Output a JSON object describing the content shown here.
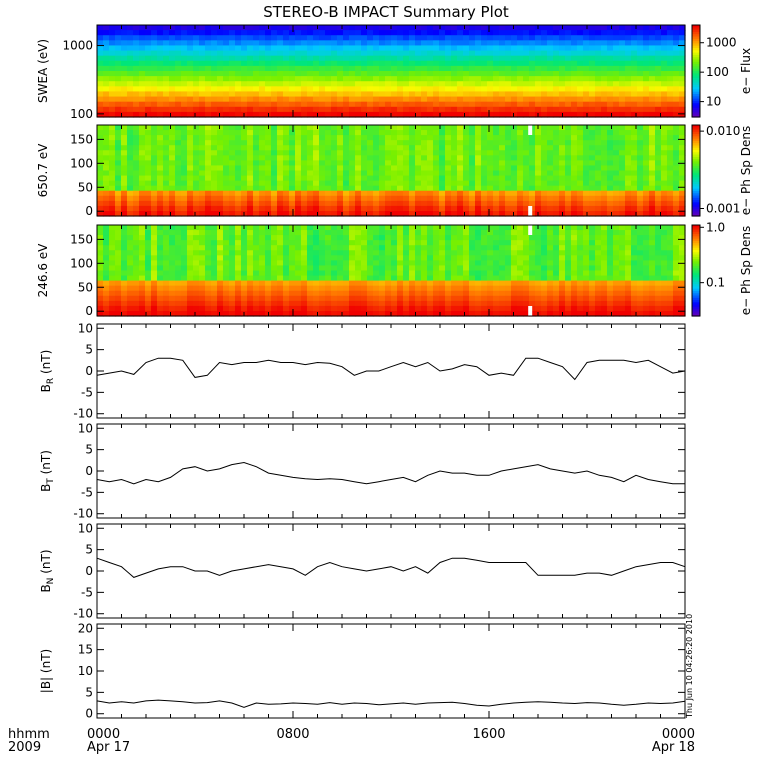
{
  "title": "STEREO-B IMPACT Summary Plot",
  "footer": {
    "hhmm_label": "hhmm",
    "year_label": "2009",
    "x_ticks": [
      {
        "hours": 0,
        "time": "0000",
        "date": "Apr 17"
      },
      {
        "hours": 8,
        "time": "0800",
        "date": ""
      },
      {
        "hours": 16,
        "time": "1600",
        "date": ""
      },
      {
        "hours": 24,
        "time": "0000",
        "date": "Apr 18"
      }
    ]
  },
  "timestamp": "Thu Jun 10 04:26:20 2010",
  "colors": {
    "line": "#000000",
    "frame": "#000000"
  },
  "chart_data": [
    {
      "type": "heatmap",
      "panel": "swea",
      "ylabel": "SWEA (eV)",
      "ylog": true,
      "ylim": [
        90,
        2000
      ],
      "yticks": [
        {
          "value": 1000,
          "label": "1000"
        },
        {
          "value": 100,
          "label": "100"
        }
      ],
      "colorbar": {
        "label": "e− Flux",
        "log": true,
        "range": [
          3,
          4000
        ],
        "ticks": [
          {
            "value": 1000,
            "label": "1000"
          },
          {
            "value": 100,
            "label": "100"
          },
          {
            "value": 10,
            "label": "10"
          }
        ]
      }
    },
    {
      "type": "heatmap",
      "panel": "pad650",
      "ylabel": "650.7 eV",
      "ylim": [
        -10,
        180
      ],
      "yticks": [
        {
          "value": 150,
          "label": "150"
        },
        {
          "value": 100,
          "label": "100"
        },
        {
          "value": 50,
          "label": "50"
        },
        {
          "value": 0,
          "label": "0"
        }
      ],
      "colorbar": {
        "label": "e− Ph Sp Dens",
        "log": true,
        "range": [
          0.0008,
          0.012
        ],
        "ticks": [
          {
            "value": 0.01,
            "label": "0.010"
          },
          {
            "value": 0.001,
            "label": "0.001"
          }
        ]
      }
    },
    {
      "type": "heatmap",
      "panel": "pad246",
      "ylabel": "246.6 eV",
      "ylim": [
        -10,
        180
      ],
      "yticks": [
        {
          "value": 150,
          "label": "150"
        },
        {
          "value": 100,
          "label": "100"
        },
        {
          "value": 50,
          "label": "50"
        },
        {
          "value": 0,
          "label": "0"
        }
      ],
      "colorbar": {
        "label": "e− Ph Sp Dens",
        "log": true,
        "range": [
          0.025,
          1.1
        ],
        "ticks": [
          {
            "value": 1.0,
            "label": "1.0"
          },
          {
            "value": 0.1,
            "label": "0.1"
          }
        ]
      }
    },
    {
      "type": "line",
      "panel": "br",
      "ylabel_main": "B",
      "ylabel_sub": "R",
      "ylabel_unit": "(nT)",
      "ylim": [
        -11,
        11
      ],
      "yticks": [
        {
          "value": 10,
          "label": "10"
        },
        {
          "value": 5,
          "label": "5"
        },
        {
          "value": 0,
          "label": "0"
        },
        {
          "value": -5,
          "label": "-5"
        },
        {
          "value": -10,
          "label": "-10"
        }
      ],
      "x": [
        0,
        0.5,
        1,
        1.5,
        2,
        2.5,
        3,
        3.5,
        4,
        4.5,
        5,
        5.5,
        6,
        6.5,
        7,
        7.5,
        8,
        8.5,
        9,
        9.5,
        10,
        10.5,
        11,
        11.5,
        12,
        12.5,
        13,
        13.5,
        14,
        14.5,
        15,
        15.5,
        16,
        16.5,
        17,
        17.5,
        18,
        18.5,
        19,
        19.5,
        20,
        20.5,
        21,
        21.5,
        22,
        22.5,
        23,
        23.5,
        24
      ],
      "y": [
        -1,
        -0.5,
        0,
        -0.8,
        2,
        3,
        3,
        2.5,
        -1.5,
        -1,
        2,
        1.5,
        2,
        2,
        2.5,
        2,
        2,
        1.5,
        2,
        1.8,
        1,
        -1,
        0,
        0,
        1,
        2,
        1,
        2,
        0,
        0.5,
        1.5,
        1,
        -1,
        -0.5,
        -1,
        3,
        3,
        2,
        1,
        -2,
        2,
        2.5,
        2.5,
        2.5,
        2,
        2.5,
        1,
        -0.5,
        0
      ]
    },
    {
      "type": "line",
      "panel": "bt",
      "ylabel_main": "B",
      "ylabel_sub": "T",
      "ylabel_unit": "(nT)",
      "ylim": [
        -11,
        11
      ],
      "yticks": [
        {
          "value": 10,
          "label": "10"
        },
        {
          "value": 5,
          "label": "5"
        },
        {
          "value": 0,
          "label": "0"
        },
        {
          "value": -5,
          "label": "-5"
        },
        {
          "value": -10,
          "label": "-10"
        }
      ],
      "x": [
        0,
        0.5,
        1,
        1.5,
        2,
        2.5,
        3,
        3.5,
        4,
        4.5,
        5,
        5.5,
        6,
        6.5,
        7,
        7.5,
        8,
        8.5,
        9,
        9.5,
        10,
        10.5,
        11,
        11.5,
        12,
        12.5,
        13,
        13.5,
        14,
        14.5,
        15,
        15.5,
        16,
        16.5,
        17,
        17.5,
        18,
        18.5,
        19,
        19.5,
        20,
        20.5,
        21,
        21.5,
        22,
        22.5,
        23,
        23.5,
        24
      ],
      "y": [
        -2,
        -2.5,
        -2,
        -3,
        -2,
        -2.5,
        -1.5,
        0.5,
        1,
        0,
        0.5,
        1.5,
        2,
        1,
        -0.5,
        -1,
        -1.5,
        -1.8,
        -2,
        -1.8,
        -2,
        -2.5,
        -3,
        -2.5,
        -2,
        -1.5,
        -2.5,
        -1,
        0,
        -0.5,
        -0.5,
        -1,
        -1,
        0,
        0.5,
        1,
        1.5,
        0.5,
        0,
        -0.5,
        0,
        -1,
        -1.5,
        -2.5,
        -1,
        -2,
        -2.5,
        -3,
        -3
      ]
    },
    {
      "type": "line",
      "panel": "bn",
      "ylabel_main": "B",
      "ylabel_sub": "N",
      "ylabel_unit": "(nT)",
      "ylim": [
        -11,
        11
      ],
      "yticks": [
        {
          "value": 10,
          "label": "10"
        },
        {
          "value": 5,
          "label": "5"
        },
        {
          "value": 0,
          "label": "0"
        },
        {
          "value": -5,
          "label": "-5"
        },
        {
          "value": -10,
          "label": "-10"
        }
      ],
      "x": [
        0,
        0.5,
        1,
        1.5,
        2,
        2.5,
        3,
        3.5,
        4,
        4.5,
        5,
        5.5,
        6,
        6.5,
        7,
        7.5,
        8,
        8.5,
        9,
        9.5,
        10,
        10.5,
        11,
        11.5,
        12,
        12.5,
        13,
        13.5,
        14,
        14.5,
        15,
        15.5,
        16,
        16.5,
        17,
        17.5,
        18,
        18.5,
        19,
        19.5,
        20,
        20.5,
        21,
        21.5,
        22,
        22.5,
        23,
        23.5,
        24
      ],
      "y": [
        3,
        2,
        1,
        -1.5,
        -0.5,
        0.5,
        1,
        1,
        0,
        0,
        -1,
        0,
        0.5,
        1,
        1.5,
        1,
        0.5,
        -1,
        1,
        2,
        1,
        0.5,
        0,
        0.5,
        1,
        0,
        1,
        -0.5,
        2,
        3,
        3,
        2.5,
        2,
        2,
        2,
        2,
        -1,
        -1,
        -1,
        -1,
        -0.5,
        -0.5,
        -1,
        0,
        1,
        1.5,
        2,
        2,
        1
      ]
    },
    {
      "type": "line",
      "panel": "bmag",
      "ylabel_main": "|B|",
      "ylabel_sub": "",
      "ylabel_unit": "(nT)",
      "ylim": [
        -1,
        21
      ],
      "yticks": [
        {
          "value": 20,
          "label": "20"
        },
        {
          "value": 15,
          "label": "15"
        },
        {
          "value": 10,
          "label": "10"
        },
        {
          "value": 5,
          "label": "5"
        },
        {
          "value": 0,
          "label": "0"
        }
      ],
      "x": [
        0,
        0.5,
        1,
        1.5,
        2,
        2.5,
        3,
        3.5,
        4,
        4.5,
        5,
        5.5,
        6,
        6.5,
        7,
        7.5,
        8,
        8.5,
        9,
        9.5,
        10,
        10.5,
        11,
        11.5,
        12,
        12.5,
        13,
        13.5,
        14,
        14.5,
        15,
        15.5,
        16,
        16.5,
        17,
        17.5,
        18,
        18.5,
        19,
        19.5,
        20,
        20.5,
        21,
        21.5,
        22,
        22.5,
        23,
        23.5,
        24
      ],
      "y": [
        3,
        2.5,
        2.8,
        2.5,
        3,
        3.2,
        3,
        2.8,
        2.5,
        2.6,
        3,
        2.5,
        1.5,
        2.5,
        2.2,
        2.3,
        2.5,
        2.4,
        2.2,
        2.6,
        2.2,
        2.5,
        2.4,
        2.1,
        2.3,
        2.5,
        2.2,
        2.5,
        2.6,
        2.7,
        2.4,
        2,
        1.8,
        2.2,
        2.5,
        2.7,
        2.8,
        2.7,
        2.5,
        2.4,
        2.6,
        2.5,
        2.2,
        2,
        2.2,
        2.5,
        2.4,
        2.5,
        2.9
      ]
    }
  ]
}
